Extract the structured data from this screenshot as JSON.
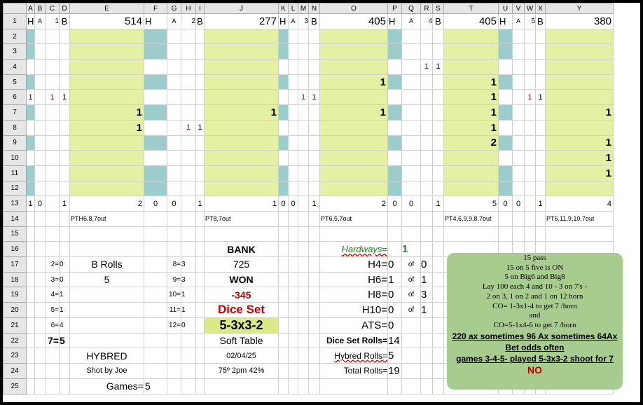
{
  "columns": [
    "A",
    "B",
    "C",
    "D",
    "E",
    "F",
    "G",
    "H",
    "I",
    "J",
    "K",
    "L",
    "M",
    "N",
    "O",
    "P",
    "Q",
    "R",
    "S",
    "T",
    "U",
    "V",
    "W",
    "X",
    "Y"
  ],
  "rows": [
    "1",
    "2",
    "3",
    "4",
    "5",
    "6",
    "7",
    "8",
    "9",
    "10",
    "11",
    "12",
    "13",
    "14",
    "15",
    "16",
    "17",
    "18",
    "19",
    "20",
    "21",
    "22",
    "23",
    "24",
    "25"
  ],
  "header_row": {
    "g1": {
      "h": "H",
      "a": "A",
      "n": "1",
      "b": "B",
      "total": "514"
    },
    "g2": {
      "h": "H",
      "a": "A",
      "n": "2",
      "b": "B",
      "total": "277"
    },
    "g3": {
      "h": "H",
      "a": "A",
      "n": "3",
      "b": "B",
      "total": "405"
    },
    "g4": {
      "h": "H",
      "a": "A",
      "n": "4",
      "b": "B",
      "total": "405"
    },
    "g5": {
      "h": "H",
      "a": "A",
      "n": "5",
      "b": "B",
      "total": "380"
    }
  },
  "cells": {
    "r4_R": "1",
    "r4_S": "1",
    "r5_O": "1",
    "r5_T": "1",
    "r6_A": "1",
    "r6_C": "1",
    "r6_D": "1",
    "r6_M": "1",
    "r6_N": "1",
    "r6_T": "1",
    "r6_W": "1",
    "r6_X": "1",
    "r7_E": "1",
    "r7_J": "1",
    "r7_O": "1",
    "r7_T": "1",
    "r7_Y": "1",
    "r8_E": "1",
    "r8_H": "1",
    "r8_I": "1",
    "r8_T": "1",
    "r9_T": "2",
    "r9_Y": "1",
    "r10_Y": "1",
    "r11_Y": "1"
  },
  "row13": {
    "A": "1",
    "B": "0",
    "D": "1",
    "E": "2",
    "F": "0",
    "G": "0",
    "I": "1",
    "J": "1",
    "K": "0",
    "L": "0",
    "N": "1",
    "O": "2",
    "P": "0",
    "Q": "0",
    "S": "1",
    "T": "5",
    "U": "0",
    "V": "0",
    "X": "1",
    "Y": "4"
  },
  "row14": {
    "E": "PTH6,8,7out",
    "J": "PT8,7out",
    "O": "PT6,5,7out",
    "T": "PT4,6,9,9,8,7out",
    "Y": "PT6,11,9,10,7out"
  },
  "left_stats": [
    {
      "k": "2=",
      "v": "0"
    },
    {
      "k": "3=",
      "v": "0"
    },
    {
      "k": "4=",
      "v": "1"
    },
    {
      "k": "5=",
      "v": "1"
    },
    {
      "k": "6=",
      "v": "4"
    }
  ],
  "seven": {
    "k": "7=",
    "v": "5"
  },
  "right_stats": [
    {
      "k": "8=",
      "v": "3"
    },
    {
      "k": "9=",
      "v": "3"
    },
    {
      "k": "10=",
      "v": "1"
    },
    {
      "k": "11=",
      "v": "1"
    },
    {
      "k": "12=",
      "v": "0"
    }
  ],
  "b_rolls": {
    "label": "B Rolls",
    "value": "5"
  },
  "hybred": "HYBRED",
  "shot_by": "Shot by Joe",
  "games": {
    "label": "Games=",
    "value": "5"
  },
  "bank": {
    "label": "BANK",
    "value": "725"
  },
  "won": {
    "label": "WON",
    "value": "-345"
  },
  "dice_set": {
    "label": "Dice Set",
    "value": "5-3x3-2"
  },
  "table_type": "Soft Table",
  "date": "02/04/25",
  "weather": "75º 2pm 42%",
  "hardways": {
    "label": "Hardways=",
    "value": "1"
  },
  "hard": [
    {
      "k": "H4=",
      "v": "0",
      "of": "of",
      "t": "0"
    },
    {
      "k": "H6=",
      "v": "1",
      "of": "of",
      "t": "1"
    },
    {
      "k": "H8=",
      "v": "0",
      "of": "of",
      "t": "3"
    },
    {
      "k": "H10=",
      "v": "0",
      "of": "of",
      "t": "1"
    }
  ],
  "ats": {
    "label": "ATS=",
    "value": "0"
  },
  "dice_set_rolls": {
    "label": "Dice Set Rolls=",
    "value": "14"
  },
  "hybred_rolls": {
    "label": "Hybred Rolls=",
    "value": "5"
  },
  "total_rolls": {
    "label": "Total Rolls=",
    "value": "19"
  },
  "note": {
    "lines": [
      "15 pass",
      "15 on 5 five is ON",
      "5 on Big6 and Big8",
      "Lay  100 each 4 and 10 - 3 on 7's -",
      "2 on 3, 1 on 2 and 1 on 12 horn",
      "CO= 1-3x1-4 to get 7 /horn",
      "and",
      "CO=5-1x4-6 to get 7 /horn"
    ],
    "bold_lines": [
      "220 ax sometimes 96 Ax sometimes 64Ax",
      "Bet odds often",
      "games 3-4-5- played 5-3x3-2 shoot for 7"
    ],
    "no": "NO"
  }
}
